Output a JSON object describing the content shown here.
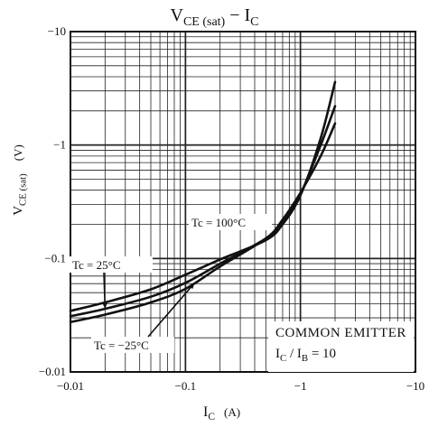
{
  "chart_data": {
    "type": "line",
    "title": "VCE (sat) − IC",
    "title_main": "V",
    "title_sub": "CE (sat)",
    "title_sep": " − ",
    "title_main2": "I",
    "title_sub2": "C",
    "ylabel_main": "V",
    "ylabel_sub": "CE (sat)",
    "ylabel_unit": "(V)",
    "xlabel_main": "I",
    "xlabel_sub": "C",
    "xlabel_unit": "(A)",
    "x_scale": "log",
    "y_scale": "log",
    "xlim": [
      -0.01,
      -10
    ],
    "ylim": [
      -0.01,
      -10
    ],
    "grid": true,
    "x_ticks": [
      "−0.01",
      "−0.1",
      "−1",
      "−10"
    ],
    "y_ticks": [
      "−0.01",
      "−0.1",
      "−1",
      "−10"
    ],
    "x_tick_values": [
      0.01,
      0.1,
      1,
      10
    ],
    "y_tick_values": [
      0.01,
      0.1,
      1,
      10
    ],
    "annotation_line1": "COMMON EMITTER",
    "annotation_line2_a": "I",
    "annotation_line2_b": "C",
    "annotation_line2_c": " / I",
    "annotation_line2_d": "B",
    "annotation_line2_e": " = 10",
    "series": [
      {
        "name": "Tc = 100°C",
        "label": "Tc = 100°C",
        "x": [
          0.01,
          0.02,
          0.05,
          0.1,
          0.2,
          0.5,
          0.7,
          1.0,
          1.5,
          2.0
        ],
        "y": [
          0.0345,
          0.041,
          0.0535,
          0.072,
          0.098,
          0.145,
          0.2,
          0.36,
          1.15,
          3.6
        ]
      },
      {
        "name": "Tc = 25°C",
        "label": "Tc = 25°C",
        "x": [
          0.01,
          0.02,
          0.05,
          0.1,
          0.2,
          0.5,
          0.7,
          1.0,
          1.5,
          2.0
        ],
        "y": [
          0.031,
          0.036,
          0.046,
          0.061,
          0.09,
          0.15,
          0.21,
          0.37,
          1.0,
          2.2
        ]
      },
      {
        "name": "Tc = −25°C",
        "label": "Tc = −25°C",
        "x": [
          0.01,
          0.02,
          0.05,
          0.1,
          0.2,
          0.5,
          0.7,
          1.0,
          1.5,
          2.0
        ],
        "y": [
          0.0275,
          0.032,
          0.041,
          0.054,
          0.085,
          0.15,
          0.22,
          0.38,
          0.8,
          1.55
        ]
      }
    ]
  }
}
